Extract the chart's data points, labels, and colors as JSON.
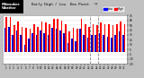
{
  "title": "Daily High / Low  Dew Point  °F",
  "left_label": "Milwaukee\nWeather",
  "ylim": [
    -25,
    75
  ],
  "yticks": [
    -25,
    -15,
    -5,
    5,
    15,
    25,
    35,
    45,
    55,
    65,
    75
  ],
  "ytick_labels": [
    "-25",
    "-15",
    "-5",
    "5",
    "15",
    "25",
    "35",
    "45",
    "55",
    "65",
    "75"
  ],
  "background_color": "#c0c0c0",
  "plot_bg_color": "#ffffff",
  "left_bg_color": "#000000",
  "legend_high_label": "High",
  "legend_low_label": "Low",
  "legend_high_color": "#ff0000",
  "legend_low_color": "#0000ff",
  "days": [
    1,
    2,
    3,
    4,
    5,
    6,
    7,
    8,
    9,
    10,
    11,
    12,
    13,
    14,
    15,
    16,
    17,
    18,
    19,
    20,
    21,
    22,
    23,
    24,
    25,
    26,
    27,
    28,
    29,
    30,
    31
  ],
  "high": [
    72,
    72,
    55,
    62,
    52,
    50,
    48,
    58,
    52,
    62,
    60,
    58,
    68,
    68,
    65,
    58,
    42,
    50,
    48,
    68,
    58,
    52,
    58,
    55,
    60,
    58,
    58,
    55,
    58,
    62,
    58
  ],
  "low": [
    50,
    52,
    35,
    45,
    35,
    15,
    28,
    38,
    35,
    45,
    38,
    35,
    50,
    48,
    45,
    38,
    18,
    28,
    22,
    48,
    35,
    30,
    35,
    35,
    38,
    35,
    32,
    30,
    35,
    42,
    35
  ],
  "high_color": "#ff0000",
  "low_color": "#0000cc",
  "vline_positions": [
    22.5,
    24.5
  ],
  "vline_color": "#888888",
  "vline_style": "dashed"
}
